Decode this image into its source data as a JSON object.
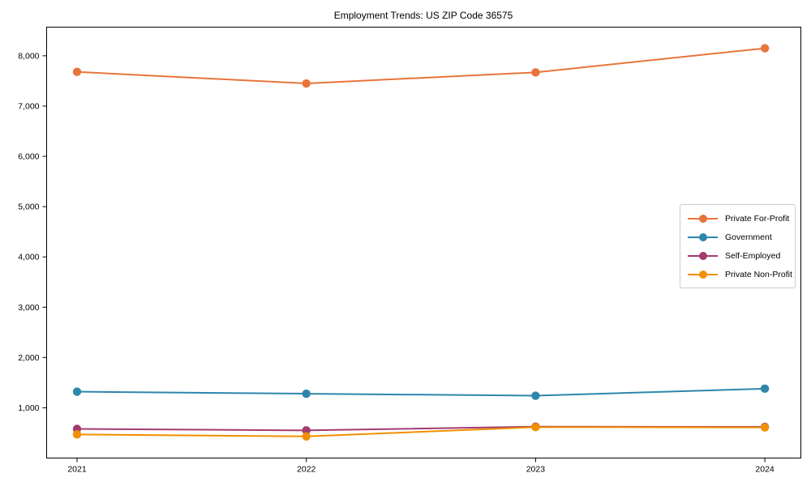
{
  "chart_data": {
    "type": "line",
    "title": "Employment Trends: US ZIP Code 36575",
    "categories": [
      "2021",
      "2022",
      "2023",
      "2024"
    ],
    "series": [
      {
        "name": "Private For-Profit",
        "color": "#e8743b",
        "values": [
          7680,
          7450,
          7670,
          8150
        ]
      },
      {
        "name": "Government",
        "color": "#2e86ab",
        "values": [
          1320,
          1280,
          1240,
          1380
        ]
      },
      {
        "name": "Self-Employed",
        "color": "#a23b72",
        "values": [
          580,
          550,
          625,
          620
        ]
      },
      {
        "name": "Private Non-Profit",
        "color": "#f18f01",
        "values": [
          470,
          430,
          615,
          610
        ]
      }
    ],
    "xlabel": "",
    "ylabel": "",
    "ylim": [
      0,
      8570
    ],
    "yticks": [
      1000,
      2000,
      3000,
      4000,
      5000,
      6000,
      7000,
      8000
    ],
    "ytick_labels": [
      "1,000",
      "2,000",
      "3,000",
      "4,000",
      "5,000",
      "6,000",
      "7,000",
      "8,000"
    ],
    "grid": false,
    "legend_position": "center-right",
    "axis_color": "#000000"
  }
}
